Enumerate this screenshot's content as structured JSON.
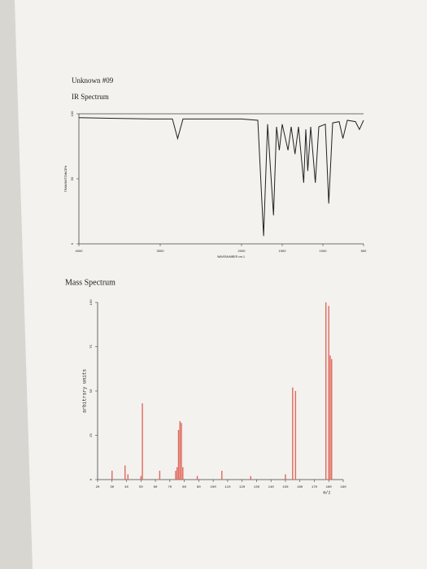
{
  "heading": "Unknown #09",
  "chart_data": [
    {
      "type": "line",
      "title": "IR Spectrum",
      "x_label": "WAVENUMBER cm-1",
      "y_label": "TRANSMITTANCE%",
      "color": "#222222",
      "x": [
        4000,
        3100,
        2850,
        2786,
        2720,
        2000,
        1800,
        1729,
        1680,
        1607,
        1570,
        1536,
        1500,
        1429,
        1390,
        1343,
        1300,
        1236,
        1210,
        1186,
        1150,
        1093,
        1050,
        970,
        928,
        880,
        800,
        754,
        700,
        600,
        551,
        500
      ],
      "values": [
        97,
        96,
        96,
        81,
        96,
        96,
        95,
        6,
        92,
        22,
        90,
        72,
        92,
        72,
        90,
        69,
        90,
        47,
        88,
        56,
        90,
        47,
        90,
        92,
        31,
        93,
        94,
        81,
        95,
        94,
        88,
        95
      ],
      "xlim": [
        4000,
        500
      ],
      "xticks": [
        4000,
        3000,
        2000,
        1500,
        1000,
        500
      ],
      "ylim": [
        0,
        100
      ],
      "yticks": [
        0,
        50,
        100
      ]
    },
    {
      "type": "bar",
      "title": "Mass Spectrum",
      "x_label": "m/z",
      "y_label": "arbitrary units",
      "color": "#e0685c",
      "x": [
        30,
        39,
        41,
        50,
        51,
        63,
        74,
        75,
        76,
        77,
        78,
        79,
        89,
        106,
        126,
        150,
        155,
        157,
        178,
        180,
        181,
        182
      ],
      "values": [
        5,
        8,
        3,
        2,
        43,
        5,
        5,
        7,
        28,
        33,
        32,
        7,
        2,
        5,
        2,
        3,
        52,
        50,
        100,
        98,
        70,
        68
      ],
      "xlim": [
        20,
        190
      ],
      "xticks": [
        20,
        30,
        40,
        50,
        60,
        70,
        80,
        90,
        100,
        110,
        120,
        130,
        140,
        150,
        160,
        170,
        180,
        190
      ],
      "ylim": [
        0,
        100
      ],
      "yticks": [
        0,
        25,
        50,
        75,
        100
      ]
    }
  ]
}
